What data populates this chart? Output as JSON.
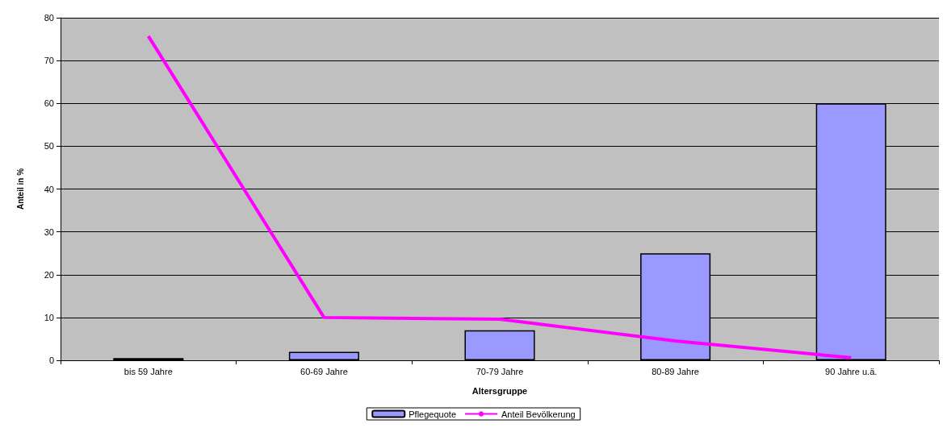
{
  "chart_data": {
    "type": "bar",
    "xlabel": "Altersgruppe",
    "ylabel": "Anteil in %",
    "categories": [
      "bis 59 Jahre",
      "60-69 Jahre",
      "70-79 Jahre",
      "80-89 Jahre",
      "90 Jahre u.ä."
    ],
    "series": [
      {
        "name": "Pflegequote",
        "color": "#9999ff",
        "values": [
          0.5,
          2,
          7,
          25,
          60
        ]
      },
      {
        "name": "Anteil Bevölkerung",
        "type": "line",
        "color": "#ff00ff",
        "values": [
          75.7,
          10,
          9.6,
          4.5,
          0.6
        ]
      }
    ],
    "ylim": [
      0,
      80
    ],
    "yticks": [
      0,
      10,
      20,
      30,
      40,
      50,
      60,
      70,
      80
    ],
    "grid": "y",
    "legend": "bottom",
    "marker": "none"
  }
}
